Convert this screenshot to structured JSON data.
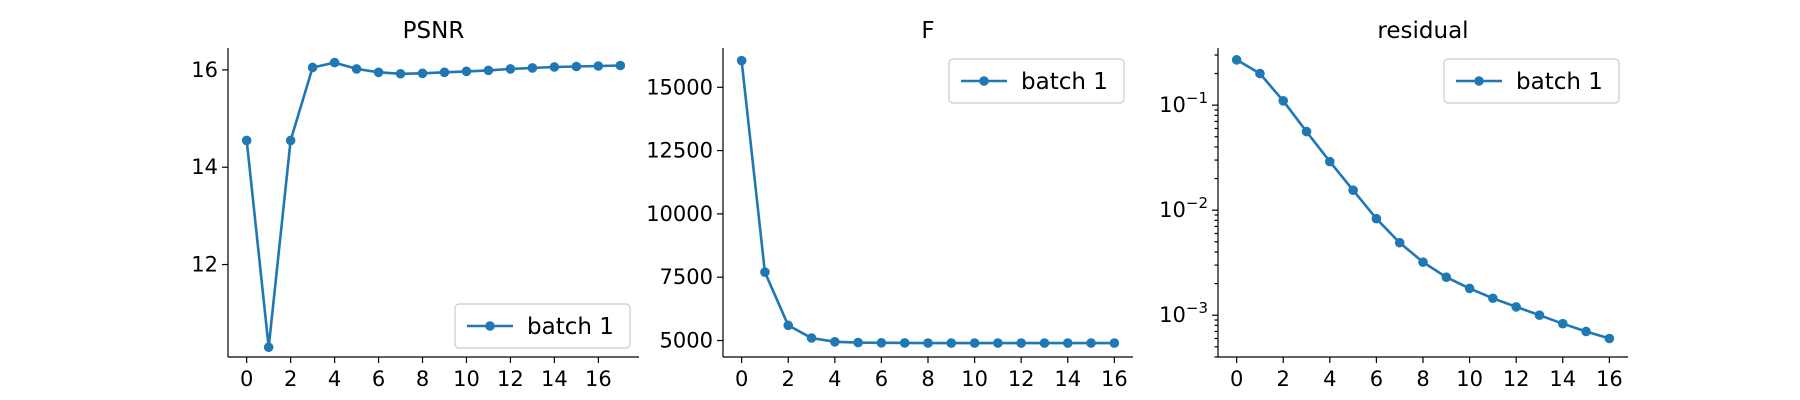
{
  "colors": {
    "series": "#1f77b4",
    "axis": "#000000",
    "legend_border": "#cccccc"
  },
  "chart_data": [
    {
      "type": "line",
      "title": "PSNR",
      "xlabel": "",
      "ylabel": "",
      "yscale": "linear",
      "xlim": [
        -0.85,
        17.85
      ],
      "ylim": [
        10.1,
        16.45
      ],
      "xticks": [
        0,
        2,
        4,
        6,
        8,
        10,
        12,
        14,
        16
      ],
      "yticks": [
        {
          "value": 12,
          "label": "12"
        },
        {
          "value": 14,
          "label": "14"
        },
        {
          "value": 16,
          "label": "16"
        }
      ],
      "legend": "lower-right",
      "grid": false,
      "series": [
        {
          "name": "batch 1",
          "marker": "circle",
          "x": [
            0,
            1,
            2,
            3,
            4,
            5,
            6,
            7,
            8,
            9,
            10,
            11,
            12,
            13,
            14,
            15,
            16,
            17
          ],
          "y": [
            14.55,
            10.3,
            14.55,
            16.05,
            16.15,
            16.02,
            15.95,
            15.92,
            15.93,
            15.95,
            15.97,
            15.99,
            16.02,
            16.04,
            16.06,
            16.07,
            16.08,
            16.09
          ]
        }
      ]
    },
    {
      "type": "line",
      "title": "F",
      "xlabel": "",
      "ylabel": "",
      "yscale": "linear",
      "xlim": [
        -0.8,
        16.8
      ],
      "ylim": [
        4350,
        16550
      ],
      "xticks": [
        0,
        2,
        4,
        6,
        8,
        10,
        12,
        14,
        16
      ],
      "yticks": [
        {
          "value": 5000,
          "label": "5000"
        },
        {
          "value": 7500,
          "label": "7500"
        },
        {
          "value": 10000,
          "label": "10000"
        },
        {
          "value": 12500,
          "label": "12500"
        },
        {
          "value": 15000,
          "label": "15000"
        }
      ],
      "legend": "upper-right",
      "grid": false,
      "series": [
        {
          "name": "batch 1",
          "marker": "circle",
          "x": [
            0,
            1,
            2,
            3,
            4,
            5,
            6,
            7,
            8,
            9,
            10,
            11,
            12,
            13,
            14,
            15,
            16
          ],
          "y": [
            16050,
            7700,
            5600,
            5100,
            4950,
            4920,
            4910,
            4905,
            4900,
            4900,
            4900,
            4900,
            4900,
            4900,
            4900,
            4900,
            4900
          ]
        }
      ]
    },
    {
      "type": "line",
      "title": "residual",
      "xlabel": "",
      "ylabel": "",
      "yscale": "log",
      "xlim": [
        -0.8,
        16.8
      ],
      "ylim": [
        0.0004,
        0.35
      ],
      "xticks": [
        0,
        2,
        4,
        6,
        8,
        10,
        12,
        14,
        16
      ],
      "yticks": [
        {
          "value": 0.001,
          "base": "10",
          "exp": "−3"
        },
        {
          "value": 0.01,
          "base": "10",
          "exp": "−2"
        },
        {
          "value": 0.1,
          "base": "10",
          "exp": "−1"
        }
      ],
      "legend": "upper-right",
      "grid": false,
      "series": [
        {
          "name": "batch 1",
          "marker": "circle",
          "x": [
            0,
            1,
            2,
            3,
            4,
            5,
            6,
            7,
            8,
            9,
            10,
            11,
            12,
            13,
            14,
            15,
            16
          ],
          "y": [
            0.27,
            0.2,
            0.11,
            0.056,
            0.029,
            0.0155,
            0.0083,
            0.0049,
            0.0032,
            0.0023,
            0.0018,
            0.00145,
            0.0012,
            0.001,
            0.00083,
            0.0007,
            0.0006
          ]
        }
      ]
    }
  ]
}
